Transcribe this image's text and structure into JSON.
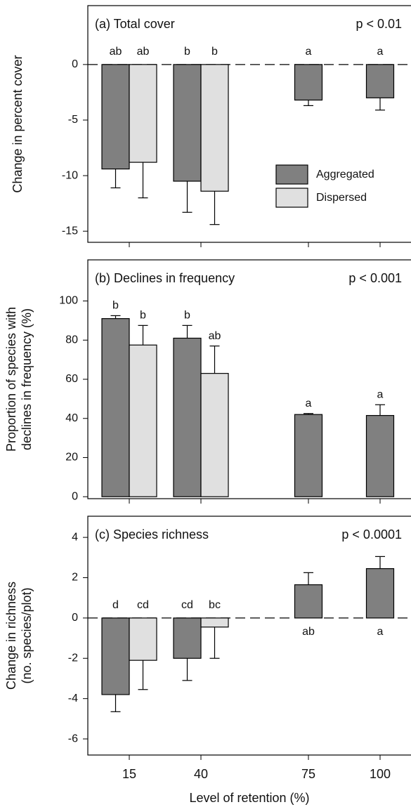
{
  "chart_data": [
    {
      "type": "bar",
      "title": "(a) Total cover",
      "annotation": "p < 0.01",
      "ylabel": [
        "Change in percent cover"
      ],
      "ylim": [
        -16,
        5.3
      ],
      "yticks": [
        0,
        -5,
        -10,
        -15
      ],
      "zero_line": true,
      "legend": "lower right",
      "series": [
        {
          "name": "Aggregated",
          "color": "#808080",
          "values": [
            -9.4,
            -10.5,
            -3.2,
            -3.0
          ],
          "errors": [
            1.7,
            2.8,
            0.5,
            1.1
          ],
          "letters": [
            "ab",
            "b",
            "a",
            "a"
          ]
        },
        {
          "name": "Dispersed",
          "color": "#e0e0e0",
          "values": [
            -8.8,
            -11.4,
            null,
            null
          ],
          "errors": [
            3.2,
            3.0,
            null,
            null
          ],
          "letters": [
            "ab",
            "b",
            null,
            null
          ]
        }
      ]
    },
    {
      "type": "bar",
      "title": "(b)  Declines in frequency",
      "annotation": "p < 0.001",
      "ylabel": [
        "Proportion of species with",
        "declines in frequency (%)"
      ],
      "ylim": [
        -1,
        121
      ],
      "yticks": [
        0,
        20,
        40,
        60,
        80,
        100
      ],
      "zero_line": false,
      "series": [
        {
          "name": "Aggregated",
          "color": "#808080",
          "values": [
            91,
            81,
            42,
            41.5
          ],
          "errors": [
            1.5,
            6.5,
            0.5,
            5.5
          ],
          "letters": [
            "b",
            "b",
            "a",
            "a"
          ]
        },
        {
          "name": "Dispersed",
          "color": "#e0e0e0",
          "values": [
            77.5,
            63,
            null,
            null
          ],
          "errors": [
            10,
            14,
            null,
            null
          ],
          "letters": [
            "b",
            "ab",
            null,
            null
          ]
        }
      ]
    },
    {
      "type": "bar",
      "title": "(c) Species richness",
      "annotation": "p < 0.0001",
      "ylabel": [
        "Change in richness",
        "(no. species/plot)"
      ],
      "xlabel": "Level of retention (%)",
      "categories": [
        "15",
        "40",
        "75",
        "100"
      ],
      "ylim": [
        -6.8,
        5.05
      ],
      "yticks": [
        -6,
        -4,
        -2,
        0,
        2,
        4
      ],
      "zero_line": true,
      "series": [
        {
          "name": "Aggregated",
          "color": "#808080",
          "values": [
            -3.8,
            -2.0,
            1.65,
            2.45
          ],
          "errors": [
            0.85,
            1.1,
            0.6,
            0.6
          ],
          "letters": [
            "d",
            "cd",
            "ab",
            "a"
          ]
        },
        {
          "name": "Dispersed",
          "color": "#e0e0e0",
          "values": [
            -2.1,
            -0.45,
            null,
            null
          ],
          "errors": [
            1.45,
            1.55,
            null,
            null
          ],
          "letters": [
            "cd",
            "bc",
            null,
            null
          ]
        }
      ]
    }
  ]
}
